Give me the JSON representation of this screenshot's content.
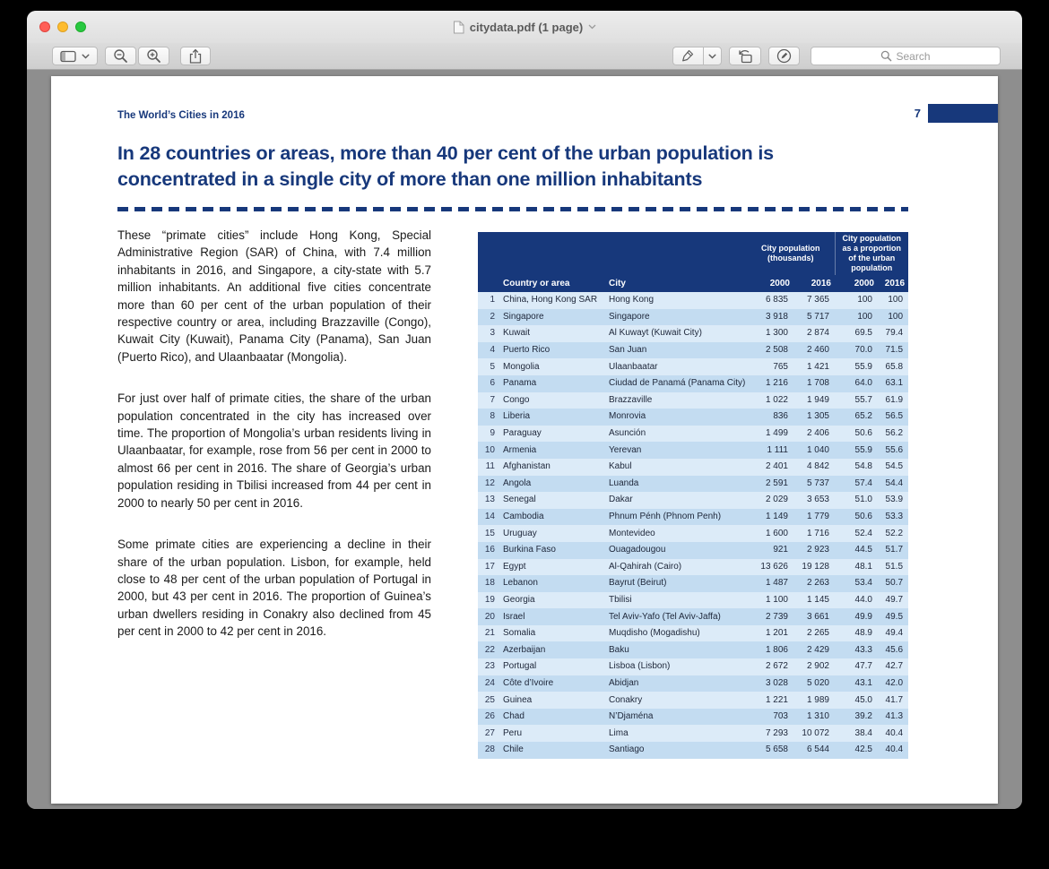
{
  "window": {
    "title": "citydata.pdf (1 page)",
    "toolbar": {
      "search_placeholder": "Search"
    },
    "icons": {
      "close": "●",
      "minimize": "●",
      "zoom": "●",
      "pdf_document": "📄",
      "title_chevron": "⌄",
      "sidebar_view": "▤",
      "view_chevron": "⌄",
      "zoom_out": "⊖",
      "zoom_in": "⊕",
      "share": "⤴",
      "highlighter": "✎",
      "highlighter_chevron": "⌄",
      "rotate_left": "↺",
      "markup_pen_circle": "◎",
      "search": "🔍"
    },
    "colors": {
      "traffic_red": "#ff5f57",
      "traffic_yellow": "#febc2e",
      "traffic_green": "#28c840"
    }
  },
  "document": {
    "running_header": "The World’s Cities in 2016",
    "page_number": "7",
    "headline_lines": [
      "In 28 countries or areas, more than 40 per cent of the urban population is",
      "concentrated in a single city of more than one million inhabitants"
    ],
    "paragraphs": [
      "These “primate cities” include Hong Kong, Special Administrative Region (SAR) of China, with 7.4 million inhabitants in 2016, and Singapore, a city-state with 5.7 million inhabitants.  An additional five cities concentrate more than 60 per cent of the urban population of their respective country or area, including Brazzaville (Congo), Kuwait City (Kuwait), Panama City (Panama), San Juan (Puerto Rico), and Ulaanbaatar (Mongolia).",
      "For just over half of primate cities, the share of the urban population concentrated in the city has increased over time.  The proportion of Mongolia’s urban residents living in Ulaanbaatar, for example, rose from 56 per cent in 2000 to almost 66 per cent in 2016.  The share of Georgia’s urban population residing in Tbilisi increased from 44 per cent in 2000 to nearly 50 per cent in 2016.",
      "Some primate cities are experiencing a decline in their share of the urban population.  Lisbon, for example, held close to 48 per cent of the urban population of Portugal in 2000, but 43 per cent in 2016.  The proportion of Guinea’s urban dwellers residing in Conakry also declined from 45 per cent in 2000 to 42 per cent in 2016."
    ],
    "table": {
      "group_headers": [
        "City population (thousands)",
        "City population as a proportion of the urban population"
      ],
      "columns": [
        "Country or area",
        "City",
        "2000",
        "2016",
        "2000",
        "2016"
      ],
      "rows": [
        [
          "1",
          "China, Hong Kong SAR",
          "Hong Kong",
          "6 835",
          "7 365",
          "100",
          "100"
        ],
        [
          "2",
          "Singapore",
          "Singapore",
          "3 918",
          "5 717",
          "100",
          "100"
        ],
        [
          "3",
          "Kuwait",
          "Al Kuwayt (Kuwait City)",
          "1 300",
          "2 874",
          "69.5",
          "79.4"
        ],
        [
          "4",
          "Puerto Rico",
          "San Juan",
          "2 508",
          "2 460",
          "70.0",
          "71.5"
        ],
        [
          "5",
          "Mongolia",
          "Ulaanbaatar",
          "765",
          "1 421",
          "55.9",
          "65.8"
        ],
        [
          "6",
          "Panama",
          "Ciudad de Panamá (Panama City)",
          "1 216",
          "1 708",
          "64.0",
          "63.1"
        ],
        [
          "7",
          "Congo",
          "Brazzaville",
          "1 022",
          "1 949",
          "55.7",
          "61.9"
        ],
        [
          "8",
          "Liberia",
          "Monrovia",
          "836",
          "1 305",
          "65.2",
          "56.5"
        ],
        [
          "9",
          "Paraguay",
          "Asunción",
          "1 499",
          "2 406",
          "50.6",
          "56.2"
        ],
        [
          "10",
          "Armenia",
          "Yerevan",
          "1 111",
          "1 040",
          "55.9",
          "55.6"
        ],
        [
          "11",
          "Afghanistan",
          "Kabul",
          "2 401",
          "4 842",
          "54.8",
          "54.5"
        ],
        [
          "12",
          "Angola",
          "Luanda",
          "2 591",
          "5 737",
          "57.4",
          "54.4"
        ],
        [
          "13",
          "Senegal",
          "Dakar",
          "2 029",
          "3 653",
          "51.0",
          "53.9"
        ],
        [
          "14",
          "Cambodia",
          "Phnum Pénh (Phnom Penh)",
          "1 149",
          "1 779",
          "50.6",
          "53.3"
        ],
        [
          "15",
          "Uruguay",
          "Montevideo",
          "1 600",
          "1 716",
          "52.4",
          "52.2"
        ],
        [
          "16",
          "Burkina Faso",
          "Ouagadougou",
          "921",
          "2 923",
          "44.5",
          "51.7"
        ],
        [
          "17",
          "Egypt",
          "Al-Qahirah (Cairo)",
          "13 626",
          "19 128",
          "48.1",
          "51.5"
        ],
        [
          "18",
          "Lebanon",
          "Bayrut (Beirut)",
          "1 487",
          "2 263",
          "53.4",
          "50.7"
        ],
        [
          "19",
          "Georgia",
          "Tbilisi",
          "1 100",
          "1 145",
          "44.0",
          "49.7"
        ],
        [
          "20",
          "Israel",
          "Tel Aviv-Yafo (Tel Aviv-Jaffa)",
          "2 739",
          "3 661",
          "49.9",
          "49.5"
        ],
        [
          "21",
          "Somalia",
          "Muqdisho (Mogadishu)",
          "1 201",
          "2 265",
          "48.9",
          "49.4"
        ],
        [
          "22",
          "Azerbaijan",
          "Baku",
          "1 806",
          "2 429",
          "43.3",
          "45.6"
        ],
        [
          "23",
          "Portugal",
          "Lisboa (Lisbon)",
          "2 672",
          "2 902",
          "47.7",
          "42.7"
        ],
        [
          "24",
          "Côte d’Ivoire",
          "Abidjan",
          "3 028",
          "5 020",
          "43.1",
          "42.0"
        ],
        [
          "25",
          "Guinea",
          "Conakry",
          "1 221",
          "1 989",
          "45.0",
          "41.7"
        ],
        [
          "26",
          "Chad",
          "N’Djaména",
          "703",
          "1 310",
          "39.2",
          "41.3"
        ],
        [
          "27",
          "Peru",
          "Lima",
          "7 293",
          "10 072",
          "38.4",
          "40.4"
        ],
        [
          "28",
          "Chile",
          "Santiago",
          "5 658",
          "6 544",
          "42.5",
          "40.4"
        ]
      ]
    },
    "colors": {
      "navy": "#17387b",
      "row_light": "#dcebf8",
      "row_dark": "#c3dcf1"
    }
  }
}
